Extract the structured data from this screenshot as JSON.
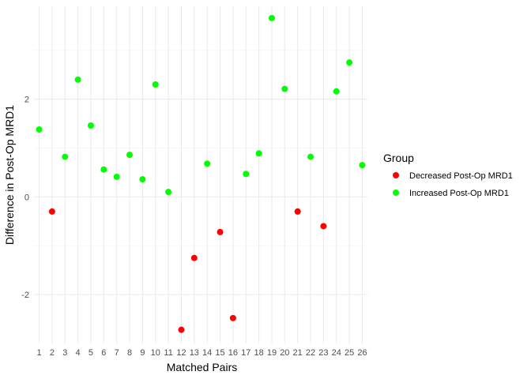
{
  "chart_data": {
    "type": "scatter",
    "title": "",
    "xlabel": "Matched Pairs",
    "ylabel": "Difference in Post-Op MRD1",
    "x_ticks": [
      "1",
      "2",
      "3",
      "4",
      "5",
      "6",
      "7",
      "8",
      "9",
      "10",
      "11",
      "12",
      "13",
      "14",
      "15",
      "16",
      "17",
      "18",
      "19",
      "20",
      "21",
      "22",
      "23",
      "24",
      "25",
      "26"
    ],
    "y_ticks": [
      -2,
      0,
      2
    ],
    "ylim": [
      -3.0,
      3.9
    ],
    "xlim": [
      0.6,
      26.4
    ],
    "grid": true,
    "legend_position": "right",
    "legend_title": "Group",
    "series": [
      {
        "name": "Decreased Post-Op MRD1",
        "color": "#ff0000",
        "points": [
          {
            "x": 2,
            "y": -0.3
          },
          {
            "x": 12,
            "y": -2.72
          },
          {
            "x": 13,
            "y": -1.25
          },
          {
            "x": 15,
            "y": -0.72
          },
          {
            "x": 16,
            "y": -2.48
          },
          {
            "x": 21,
            "y": -0.3
          },
          {
            "x": 23,
            "y": -0.6
          }
        ]
      },
      {
        "name": "Increased Post-Op MRD1",
        "color": "#00ff00",
        "points": [
          {
            "x": 1,
            "y": 1.38
          },
          {
            "x": 3,
            "y": 0.82
          },
          {
            "x": 4,
            "y": 2.4
          },
          {
            "x": 5,
            "y": 1.46
          },
          {
            "x": 6,
            "y": 0.56
          },
          {
            "x": 7,
            "y": 0.41
          },
          {
            "x": 8,
            "y": 0.86
          },
          {
            "x": 9,
            "y": 0.36
          },
          {
            "x": 10,
            "y": 2.3
          },
          {
            "x": 11,
            "y": 0.1
          },
          {
            "x": 14,
            "y": 0.68
          },
          {
            "x": 17,
            "y": 0.47
          },
          {
            "x": 18,
            "y": 0.89
          },
          {
            "x": 19,
            "y": 3.66
          },
          {
            "x": 20,
            "y": 2.21
          },
          {
            "x": 22,
            "y": 0.82
          },
          {
            "x": 24,
            "y": 2.16
          },
          {
            "x": 25,
            "y": 2.75
          },
          {
            "x": 26,
            "y": 0.65
          }
        ]
      }
    ]
  }
}
